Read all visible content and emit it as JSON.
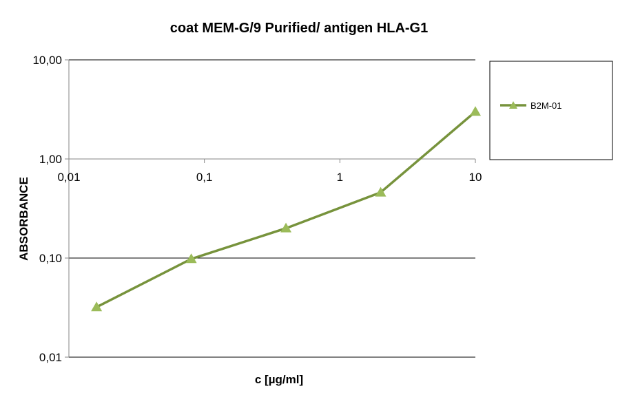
{
  "chart_data": {
    "type": "line",
    "title": "coat MEM-G/9 Purified/ antigen HLA-G1",
    "xlabel": "c [µg/ml]",
    "ylabel": "ABSORBANCE",
    "x_scale": "log",
    "y_scale": "log",
    "xlim": [
      0.01,
      10
    ],
    "ylim": [
      0.01,
      10
    ],
    "x_ticks": [
      "0,01",
      "0,1",
      "1",
      "10"
    ],
    "y_ticks": [
      "10,00",
      "1,00",
      "0,10",
      "0,01"
    ],
    "grid": "horizontal",
    "legend_position": "right",
    "series": [
      {
        "name": "B2M-01",
        "color": "#77933c",
        "marker_color": "#9bbb59",
        "marker": "triangle",
        "x": [
          0.016,
          0.08,
          0.4,
          2,
          10
        ],
        "y": [
          0.032,
          0.098,
          0.2,
          0.46,
          3.0
        ]
      }
    ]
  }
}
